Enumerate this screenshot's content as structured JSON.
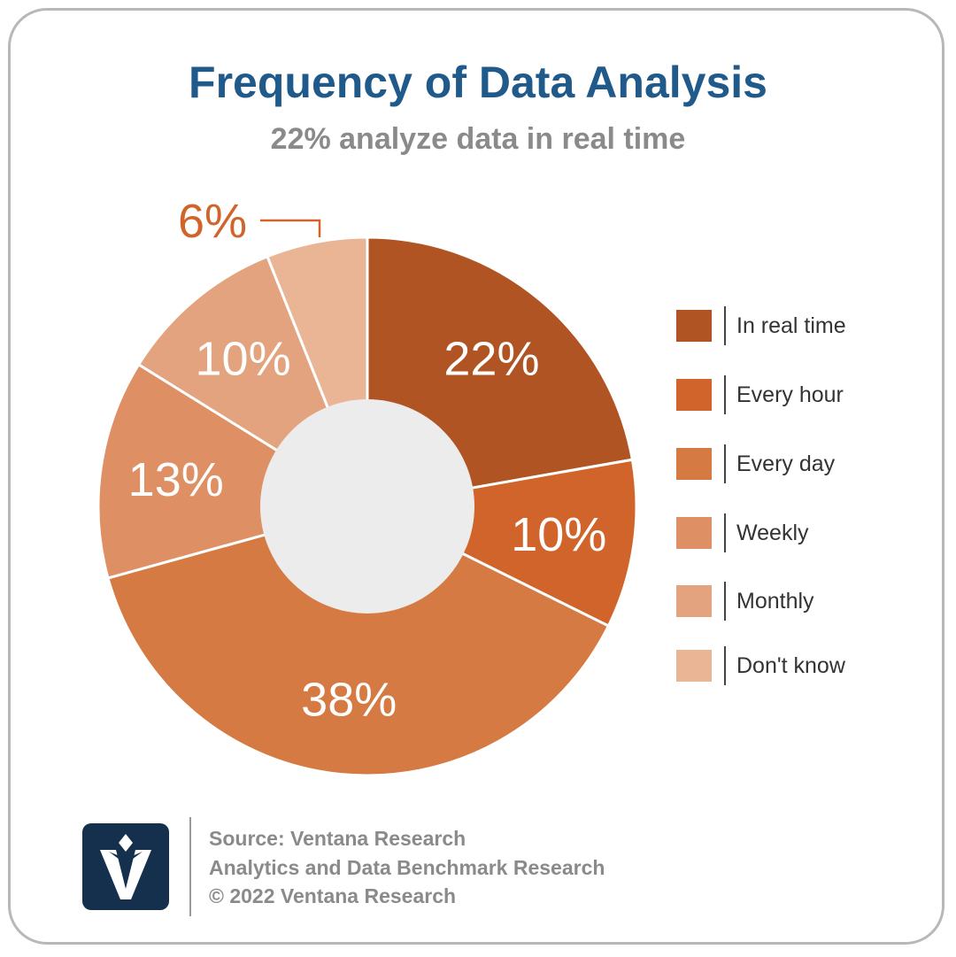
{
  "title": "Frequency of Data Analysis",
  "subtitle": "22% analyze data in real time",
  "chart_data": {
    "type": "pie",
    "categories": [
      "In real time",
      "Every hour",
      "Every day",
      "Weekly",
      "Monthly",
      "Don't know"
    ],
    "values": [
      22,
      10,
      38,
      13,
      10,
      6
    ],
    "labels": [
      "22%",
      "10%",
      "38%",
      "13%",
      "10%",
      "6%"
    ],
    "colors": [
      "#b05424",
      "#d0642a",
      "#d57a42",
      "#de9064",
      "#e3a37f",
      "#e9b594"
    ],
    "legend_position": "right"
  },
  "legend": [
    {
      "label": "In real time",
      "color": "#b05424"
    },
    {
      "label": "Every hour",
      "color": "#d0642a"
    },
    {
      "label": "Every day",
      "color": "#d57a42"
    },
    {
      "label": "Weekly",
      "color": "#de9064"
    },
    {
      "label": "Monthly",
      "color": "#e3a37f"
    },
    {
      "label": "Don't know",
      "color": "#e9b594"
    }
  ],
  "footer": {
    "source": "Source: Ventana Research",
    "study": "Analytics and Data Benchmark Research",
    "copyright": "© 2022 Ventana Research"
  }
}
